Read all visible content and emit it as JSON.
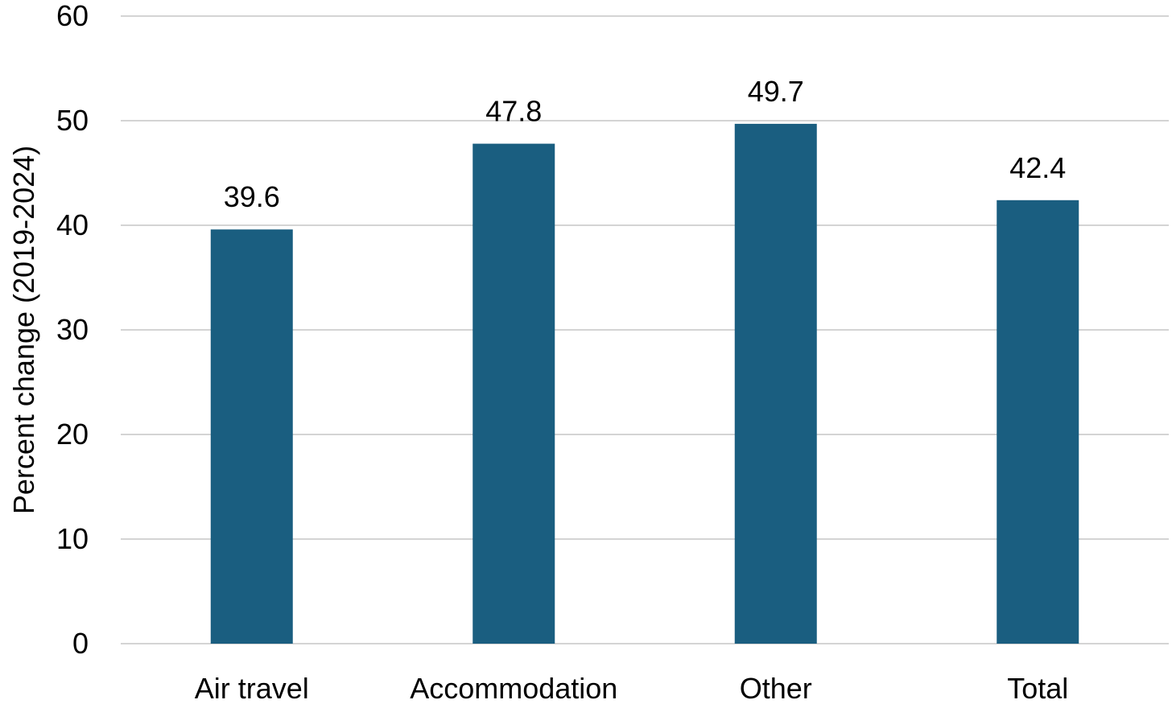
{
  "chart_data": {
    "type": "bar",
    "categories": [
      "Air travel",
      "Accommodation",
      "Other",
      "Total"
    ],
    "values": [
      39.6,
      47.8,
      49.7,
      42.4
    ],
    "data_labels": [
      "39.6",
      "47.8",
      "49.7",
      "42.4"
    ],
    "ylabel": "Percent change (2019-2024)",
    "xlabel": "",
    "ylim": [
      0,
      60
    ],
    "yticks": [
      0,
      10,
      20,
      30,
      40,
      50,
      60
    ],
    "grid": true,
    "legend": "none",
    "bar_color": "#1a5e80"
  }
}
